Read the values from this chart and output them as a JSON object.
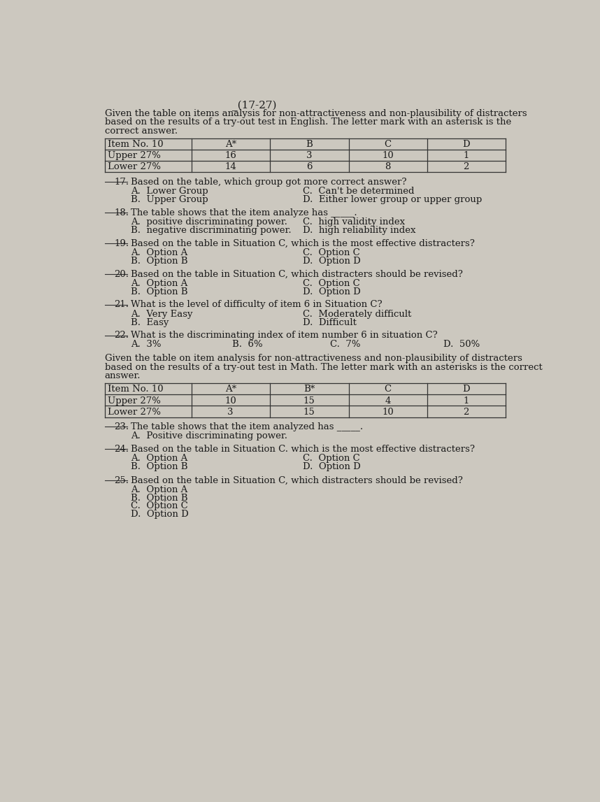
{
  "bg_color": "#ccc8bf",
  "text_color": "#1a1a1a",
  "header_text": "_(17-27)",
  "intro1_lines": [
    "Given the table on items analysis for non-attractiveness and non-plausibility of distracters",
    "based on the results of a try-out test in English. The letter mark with an asterisk is the",
    "correct answer."
  ],
  "table1": {
    "col_headers": [
      "A*",
      "B",
      "C",
      "D"
    ],
    "rows": [
      {
        "label": "Upper 27%",
        "vals": [
          "16",
          "3",
          "10",
          "1"
        ]
      },
      {
        "label": "Lower 27%",
        "vals": [
          "14",
          "6",
          "8",
          "2"
        ]
      }
    ]
  },
  "questions": [
    {
      "num": "17.",
      "text": "Based on the table, which group got more correct answer?",
      "type": "2col",
      "options": [
        [
          "A.  Lower Group",
          "C.  Can't be determined"
        ],
        [
          "B.  Upper Group",
          "D.  Either lower group or upper group"
        ]
      ]
    },
    {
      "num": "18.",
      "text": "The table shows that the item analyze has _____.",
      "type": "2col",
      "options": [
        [
          "A.  positive discriminating power.",
          "C.  high validity index"
        ],
        [
          "B.  negative discriminating power.",
          "D.  high reliability index"
        ]
      ]
    },
    {
      "num": "19.",
      "text": "Based on the table in Situation C, which is the most effective distracters?",
      "type": "2col",
      "options": [
        [
          "A.  Option A",
          "C.  Option C"
        ],
        [
          "B.  Option B",
          "D.  Option D"
        ]
      ]
    },
    {
      "num": "20.",
      "text": "Based on the table in Situation C, which distracters should be revised?",
      "type": "2col",
      "options": [
        [
          "A.  Option A",
          "C.  Option C"
        ],
        [
          "B.  Option B",
          "D.  Option D"
        ]
      ]
    },
    {
      "num": "21.",
      "text": "What is the level of difficulty of item 6 in Situation C?",
      "type": "2col",
      "options": [
        [
          "A.  Very Easy",
          "C.  Moderately difficult"
        ],
        [
          "B.  Easy",
          "D.  Difficult"
        ]
      ]
    },
    {
      "num": "22.",
      "text": "What is the discriminating index of item number 6 in situation C?",
      "type": "1row",
      "options": [
        "A.  3%",
        "B.  6%",
        "C.  7%",
        "D.  50%"
      ]
    }
  ],
  "intro2_lines": [
    "Given the table on item analysis for non-attractiveness and non-plausibility of distracters",
    "based on the results of a try-out test in Math. The letter mark with an asterisks is the correct",
    "answer."
  ],
  "table2": {
    "col_headers": [
      "A*",
      "B*",
      "C",
      "D"
    ],
    "rows": [
      {
        "label": "Upper 27%",
        "vals": [
          "10",
          "15",
          "4",
          "1"
        ]
      },
      {
        "label": "Lower 27%",
        "vals": [
          "3",
          "15",
          "10",
          "2"
        ]
      }
    ]
  },
  "questions2": [
    {
      "num": "23.",
      "text": "The table shows that the item analyzed has _____.",
      "type": "single",
      "options": [
        "A.  Positive discriminating power."
      ]
    },
    {
      "num": "24.",
      "text": "Based on the table in Situation C. which is the most effective distracters?",
      "type": "2col",
      "options": [
        [
          "A.  Option A",
          "C.  Option C"
        ],
        [
          "B.  Option B",
          "D.  Option D"
        ]
      ]
    },
    {
      "num": "25.",
      "text": "Based on the table in Situation C, which distracters should be revised?",
      "type": "vertical",
      "options": [
        "A.  Option A",
        "B.  Option B",
        "C.  Option C",
        "D.  Option D"
      ]
    }
  ]
}
